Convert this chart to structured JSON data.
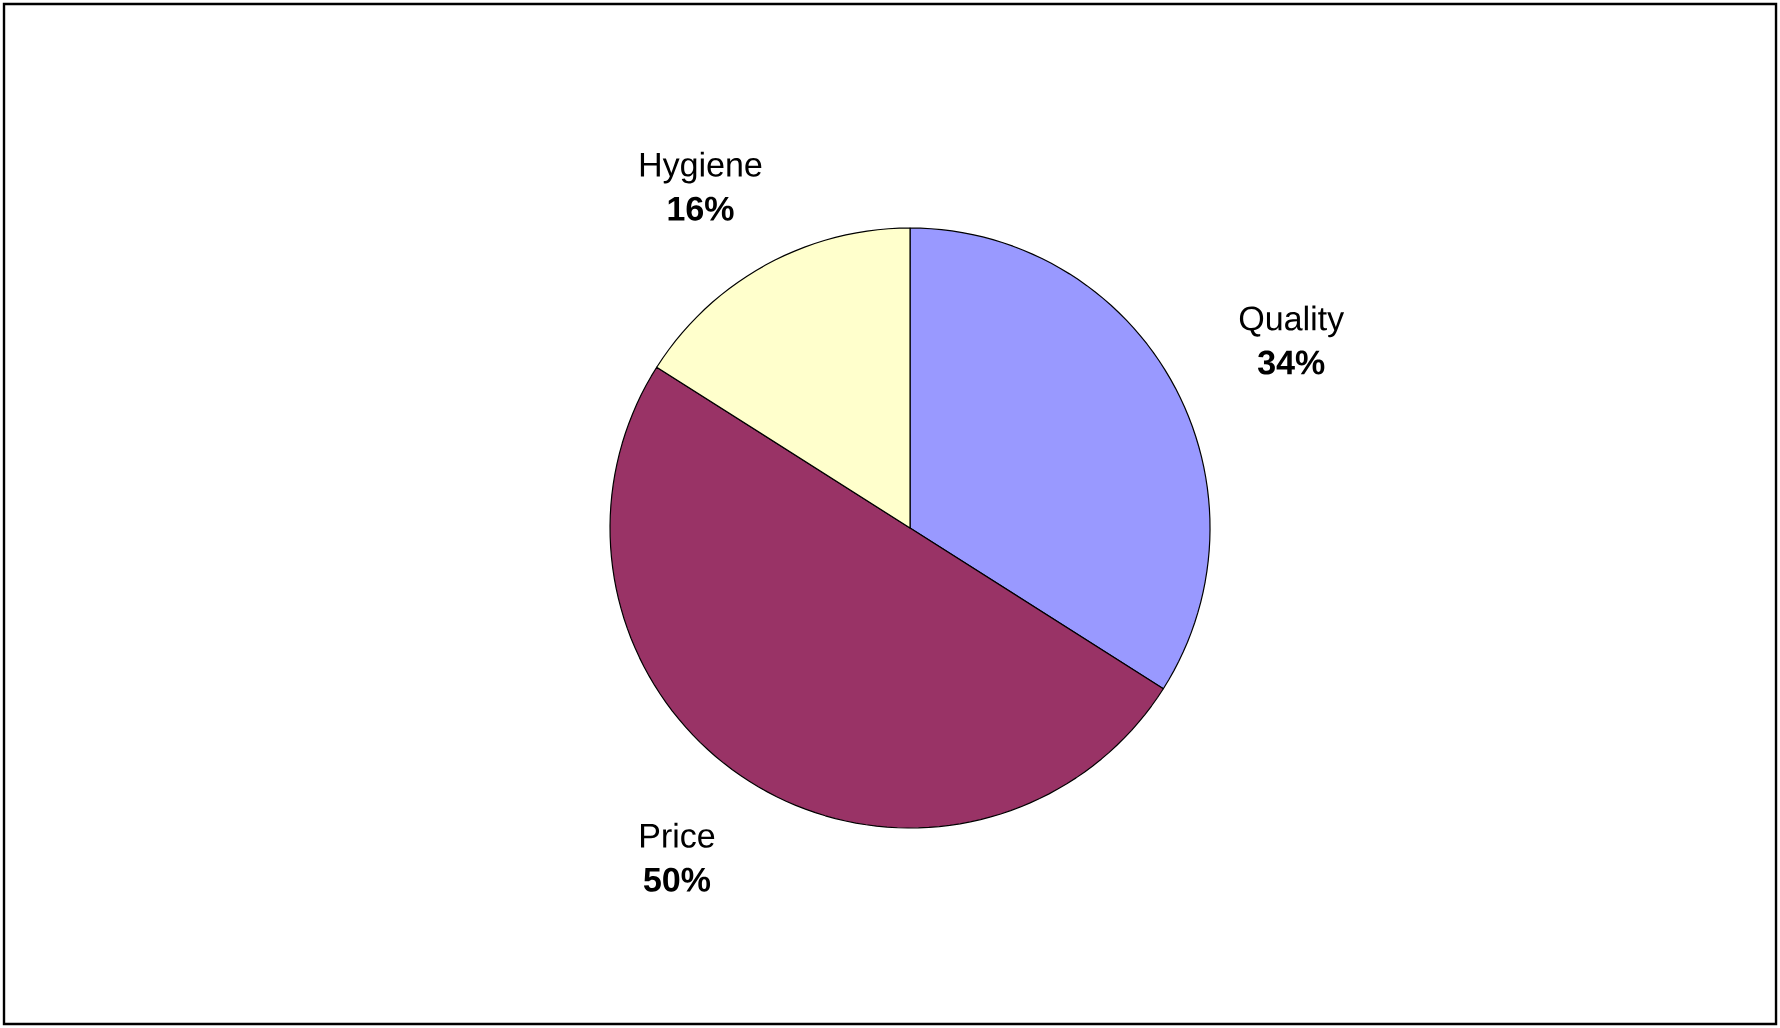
{
  "chart_data": {
    "type": "pie",
    "categories": [
      "Quality",
      "Price",
      "Hygiene"
    ],
    "values": [
      34,
      50,
      16
    ],
    "value_labels": [
      "34%",
      "50%",
      "16%"
    ],
    "colors": [
      "#9999ff",
      "#993366",
      "#ffffcc"
    ]
  }
}
